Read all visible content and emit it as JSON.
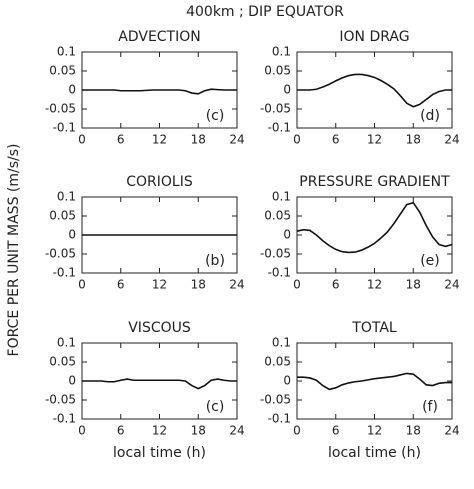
{
  "title": "400km ; DIP EQUATOR",
  "y_axis_label": "FORCE PER UNIT MASS (m/s/s)",
  "chart_data": [
    {
      "type": "line",
      "title": "ADVECTION",
      "annotation": "(c)",
      "color": "#111",
      "x": [
        0,
        1,
        2,
        3,
        4,
        5,
        6,
        7,
        8,
        9,
        10,
        11,
        12,
        13,
        14,
        15,
        16,
        17,
        18,
        19,
        20,
        21,
        22,
        23,
        24
      ],
      "values": [
        0,
        0,
        0,
        0,
        0,
        0,
        -0.002,
        -0.002,
        -0.002,
        -0.002,
        -0.001,
        0,
        0,
        0,
        0,
        0,
        -0.002,
        -0.008,
        -0.01,
        -0.002,
        0.002,
        0.001,
        0,
        0,
        0
      ],
      "xlim": [
        0,
        24
      ],
      "xticks": [
        0,
        6,
        12,
        18,
        24
      ],
      "ylim": [
        -0.1,
        0.1
      ],
      "yticks": [
        0.1,
        0.05,
        0,
        -0.05,
        -0.1
      ]
    },
    {
      "type": "line",
      "title": "ION DRAG",
      "annotation": "(d)",
      "color": "#111",
      "x": [
        0,
        1,
        2,
        3,
        4,
        5,
        6,
        7,
        8,
        9,
        10,
        11,
        12,
        13,
        14,
        15,
        16,
        17,
        18,
        19,
        20,
        21,
        22,
        23,
        24
      ],
      "values": [
        0,
        0,
        0,
        0.002,
        0.008,
        0.015,
        0.024,
        0.032,
        0.038,
        0.041,
        0.041,
        0.038,
        0.033,
        0.025,
        0.015,
        0.003,
        -0.015,
        -0.035,
        -0.044,
        -0.038,
        -0.025,
        -0.012,
        -0.004,
        0,
        0
      ],
      "xlim": [
        0,
        24
      ],
      "xticks": [
        0,
        6,
        12,
        18,
        24
      ],
      "ylim": [
        -0.1,
        0.1
      ],
      "yticks": [
        0.1,
        0.05,
        0,
        -0.05,
        -0.1
      ]
    },
    {
      "type": "line",
      "title": "CORIOLIS",
      "annotation": "(b)",
      "color": "#111",
      "x": [
        0,
        1,
        2,
        3,
        4,
        5,
        6,
        7,
        8,
        9,
        10,
        11,
        12,
        13,
        14,
        15,
        16,
        17,
        18,
        19,
        20,
        21,
        22,
        23,
        24
      ],
      "values": [
        0,
        0,
        0,
        0,
        0,
        0,
        0,
        0,
        0,
        0,
        0,
        0,
        0,
        0,
        0,
        0,
        0,
        0,
        0,
        0,
        0,
        0,
        0,
        0,
        0
      ],
      "xlim": [
        0,
        24
      ],
      "xticks": [
        0,
        6,
        12,
        18,
        24
      ],
      "ylim": [
        -0.1,
        0.1
      ],
      "yticks": [
        0.1,
        0.05,
        0,
        -0.05,
        -0.1
      ]
    },
    {
      "type": "line",
      "title": "PRESSURE GRADIENT",
      "annotation": "(e)",
      "color": "#111",
      "x": [
        0,
        1,
        2,
        3,
        4,
        5,
        6,
        7,
        8,
        9,
        10,
        11,
        12,
        13,
        14,
        15,
        16,
        17,
        18,
        19,
        20,
        21,
        22,
        23,
        24
      ],
      "values": [
        0.01,
        0.014,
        0.012,
        0,
        -0.015,
        -0.028,
        -0.038,
        -0.044,
        -0.046,
        -0.045,
        -0.04,
        -0.032,
        -0.022,
        -0.008,
        0.008,
        0.03,
        0.055,
        0.08,
        0.085,
        0.06,
        0.025,
        -0.005,
        -0.025,
        -0.03,
        -0.025
      ],
      "xlim": [
        0,
        24
      ],
      "xticks": [
        0,
        6,
        12,
        18,
        24
      ],
      "ylim": [
        -0.1,
        0.1
      ],
      "yticks": [
        0.1,
        0.05,
        0,
        -0.05,
        -0.1
      ]
    },
    {
      "type": "line",
      "title": "VISCOUS",
      "annotation": "(c)",
      "x_label": "local time (h)",
      "color": "#111",
      "x": [
        0,
        1,
        2,
        3,
        4,
        5,
        6,
        7,
        8,
        9,
        10,
        11,
        12,
        13,
        14,
        15,
        16,
        17,
        18,
        19,
        20,
        21,
        22,
        23,
        24
      ],
      "values": [
        0,
        0,
        0,
        0,
        -0.002,
        -0.002,
        0.002,
        0.005,
        0.002,
        0.002,
        0.002,
        0.002,
        0.002,
        0.002,
        0.002,
        0.002,
        0,
        -0.012,
        -0.02,
        -0.012,
        0.002,
        0.005,
        0.002,
        0,
        0
      ],
      "xlim": [
        0,
        24
      ],
      "xticks": [
        0,
        6,
        12,
        18,
        24
      ],
      "ylim": [
        -0.1,
        0.1
      ],
      "yticks": [
        0.1,
        0.05,
        0,
        -0.05,
        -0.1
      ]
    },
    {
      "type": "line",
      "title": "TOTAL",
      "annotation": "(f)",
      "x_label": "local time (h)",
      "color": "#111",
      "x": [
        0,
        1,
        2,
        3,
        4,
        5,
        6,
        7,
        8,
        9,
        10,
        11,
        12,
        13,
        14,
        15,
        16,
        17,
        18,
        19,
        20,
        21,
        22,
        23,
        24
      ],
      "values": [
        0.01,
        0.01,
        0.008,
        0.002,
        -0.012,
        -0.022,
        -0.018,
        -0.01,
        -0.005,
        -0.002,
        0,
        0.003,
        0.006,
        0.008,
        0.01,
        0.012,
        0.016,
        0.02,
        0.018,
        0.005,
        -0.01,
        -0.012,
        -0.006,
        -0.004,
        -0.004
      ],
      "xlim": [
        0,
        24
      ],
      "xticks": [
        0,
        6,
        12,
        18,
        24
      ],
      "ylim": [
        -0.1,
        0.1
      ],
      "yticks": [
        0.1,
        0.05,
        0,
        -0.05,
        -0.1
      ]
    }
  ]
}
